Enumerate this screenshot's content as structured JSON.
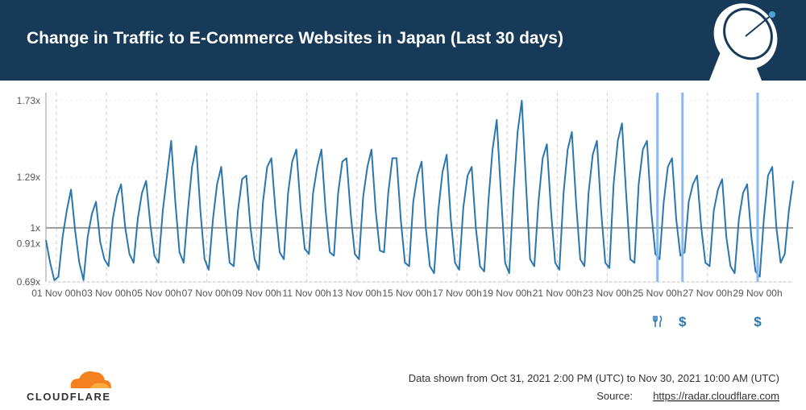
{
  "chart_data": {
    "type": "line",
    "title": "Change in Traffic to E-Commerce Websites in Japan (Last 30 days)",
    "color": "#2a76ad",
    "x": [
      "2021-10-31T14:00",
      "2021-10-31T18:00",
      "2021-10-31T22:00",
      "2021-11-01T02:00",
      "2021-11-01T06:00",
      "2021-11-01T10:00",
      "2021-11-01T14:00",
      "2021-11-01T18:00",
      "2021-11-01T22:00",
      "2021-11-02T02:00",
      "2021-11-02T06:00",
      "2021-11-02T10:00",
      "2021-11-02T14:00",
      "2021-11-02T18:00",
      "2021-11-02T22:00",
      "2021-11-03T02:00",
      "2021-11-03T06:00",
      "2021-11-03T10:00",
      "2021-11-03T14:00",
      "2021-11-03T18:00",
      "2021-11-03T22:00",
      "2021-11-04T02:00",
      "2021-11-04T06:00",
      "2021-11-04T10:00",
      "2021-11-04T14:00",
      "2021-11-04T18:00",
      "2021-11-04T22:00",
      "2021-11-05T02:00",
      "2021-11-05T06:00",
      "2021-11-05T10:00",
      "2021-11-05T14:00",
      "2021-11-05T18:00",
      "2021-11-05T22:00",
      "2021-11-06T02:00",
      "2021-11-06T06:00",
      "2021-11-06T10:00",
      "2021-11-06T14:00",
      "2021-11-06T18:00",
      "2021-11-06T22:00",
      "2021-11-07T02:00",
      "2021-11-07T06:00",
      "2021-11-07T10:00",
      "2021-11-07T14:00",
      "2021-11-07T18:00",
      "2021-11-07T22:00",
      "2021-11-08T02:00",
      "2021-11-08T06:00",
      "2021-11-08T10:00",
      "2021-11-08T14:00",
      "2021-11-08T18:00",
      "2021-11-08T22:00",
      "2021-11-09T02:00",
      "2021-11-09T06:00",
      "2021-11-09T10:00",
      "2021-11-09T14:00",
      "2021-11-09T18:00",
      "2021-11-09T22:00",
      "2021-11-10T02:00",
      "2021-11-10T06:00",
      "2021-11-10T10:00",
      "2021-11-10T14:00",
      "2021-11-10T18:00",
      "2021-11-10T22:00",
      "2021-11-11T02:00",
      "2021-11-11T06:00",
      "2021-11-11T10:00",
      "2021-11-11T14:00",
      "2021-11-11T18:00",
      "2021-11-11T22:00",
      "2021-11-12T02:00",
      "2021-11-12T06:00",
      "2021-11-12T10:00",
      "2021-11-12T14:00",
      "2021-11-12T18:00",
      "2021-11-12T22:00",
      "2021-11-13T02:00",
      "2021-11-13T06:00",
      "2021-11-13T10:00",
      "2021-11-13T14:00",
      "2021-11-13T18:00",
      "2021-11-13T22:00",
      "2021-11-14T02:00",
      "2021-11-14T06:00",
      "2021-11-14T10:00",
      "2021-11-14T14:00",
      "2021-11-14T18:00",
      "2021-11-14T22:00",
      "2021-11-15T02:00",
      "2021-11-15T06:00",
      "2021-11-15T10:00",
      "2021-11-15T14:00",
      "2021-11-15T18:00",
      "2021-11-15T22:00",
      "2021-11-16T02:00",
      "2021-11-16T06:00",
      "2021-11-16T10:00",
      "2021-11-16T14:00",
      "2021-11-16T18:00",
      "2021-11-16T22:00",
      "2021-11-17T02:00",
      "2021-11-17T06:00",
      "2021-11-17T10:00",
      "2021-11-17T14:00",
      "2021-11-17T18:00",
      "2021-11-17T22:00",
      "2021-11-18T02:00",
      "2021-11-18T06:00",
      "2021-11-18T10:00",
      "2021-11-18T14:00",
      "2021-11-18T18:00",
      "2021-11-18T22:00",
      "2021-11-19T02:00",
      "2021-11-19T06:00",
      "2021-11-19T10:00",
      "2021-11-19T14:00",
      "2021-11-19T18:00",
      "2021-11-19T22:00",
      "2021-11-20T02:00",
      "2021-11-20T06:00",
      "2021-11-20T10:00",
      "2021-11-20T14:00",
      "2021-11-20T18:00",
      "2021-11-20T22:00",
      "2021-11-21T02:00",
      "2021-11-21T06:00",
      "2021-11-21T10:00",
      "2021-11-21T14:00",
      "2021-11-21T18:00",
      "2021-11-21T22:00",
      "2021-11-22T02:00",
      "2021-11-22T06:00",
      "2021-11-22T10:00",
      "2021-11-22T14:00",
      "2021-11-22T18:00",
      "2021-11-22T22:00",
      "2021-11-23T02:00",
      "2021-11-23T06:00",
      "2021-11-23T10:00",
      "2021-11-23T14:00",
      "2021-11-23T18:00",
      "2021-11-23T22:00",
      "2021-11-24T02:00",
      "2021-11-24T06:00",
      "2021-11-24T10:00",
      "2021-11-24T14:00",
      "2021-11-24T18:00",
      "2021-11-24T22:00",
      "2021-11-25T02:00",
      "2021-11-25T06:00",
      "2021-11-25T10:00",
      "2021-11-25T14:00",
      "2021-11-25T18:00",
      "2021-11-25T22:00",
      "2021-11-26T02:00",
      "2021-11-26T06:00",
      "2021-11-26T10:00",
      "2021-11-26T14:00",
      "2021-11-26T18:00",
      "2021-11-26T22:00",
      "2021-11-27T02:00",
      "2021-11-27T06:00",
      "2021-11-27T10:00",
      "2021-11-27T14:00",
      "2021-11-27T18:00",
      "2021-11-27T22:00",
      "2021-11-28T02:00",
      "2021-11-28T06:00",
      "2021-11-28T10:00",
      "2021-11-28T14:00",
      "2021-11-28T18:00",
      "2021-11-28T22:00",
      "2021-11-29T02:00",
      "2021-11-29T06:00",
      "2021-11-29T10:00",
      "2021-11-29T14:00",
      "2021-11-29T18:00",
      "2021-11-29T22:00",
      "2021-11-30T02:00",
      "2021-11-30T06:00",
      "2021-11-30T10:00"
    ],
    "values": [
      0.93,
      0.8,
      0.7,
      0.72,
      0.95,
      1.1,
      1.22,
      0.98,
      0.8,
      0.7,
      0.95,
      1.08,
      1.15,
      0.92,
      0.82,
      0.78,
      1.05,
      1.18,
      1.25,
      1.0,
      0.85,
      0.8,
      1.05,
      1.2,
      1.27,
      1.02,
      0.84,
      0.8,
      1.1,
      1.3,
      1.5,
      1.15,
      0.86,
      0.8,
      1.1,
      1.35,
      1.47,
      1.1,
      0.82,
      0.76,
      1.05,
      1.25,
      1.35,
      1.05,
      0.8,
      0.78,
      1.1,
      1.28,
      1.3,
      1.0,
      0.82,
      0.76,
      1.15,
      1.35,
      1.4,
      1.1,
      0.86,
      0.82,
      1.2,
      1.38,
      1.45,
      1.12,
      0.88,
      0.85,
      1.2,
      1.35,
      1.45,
      1.1,
      0.86,
      0.84,
      1.2,
      1.38,
      1.4,
      1.08,
      0.85,
      0.82,
      1.18,
      1.35,
      1.45,
      1.1,
      0.87,
      0.86,
      1.2,
      1.4,
      1.4,
      1.05,
      0.8,
      0.78,
      1.15,
      1.3,
      1.38,
      1.0,
      0.78,
      0.74,
      1.1,
      1.32,
      1.42,
      1.05,
      0.8,
      0.76,
      1.12,
      1.3,
      1.35,
      1.0,
      0.78,
      0.75,
      1.15,
      1.45,
      1.62,
      1.2,
      0.8,
      0.74,
      1.2,
      1.55,
      1.73,
      1.25,
      0.82,
      0.78,
      1.15,
      1.4,
      1.48,
      1.1,
      0.8,
      0.76,
      1.2,
      1.45,
      1.55,
      1.15,
      0.82,
      0.78,
      1.2,
      1.42,
      1.5,
      1.1,
      0.8,
      0.77,
      1.25,
      1.5,
      1.6,
      1.2,
      0.82,
      0.8,
      1.25,
      1.45,
      1.5,
      1.1,
      0.85,
      0.82,
      1.15,
      1.35,
      1.4,
      1.05,
      0.84,
      0.86,
      1.15,
      1.25,
      1.3,
      1.0,
      0.8,
      0.78,
      1.1,
      1.22,
      1.28,
      0.95,
      0.78,
      0.74,
      1.05,
      1.2,
      1.25,
      0.95,
      0.75,
      0.72,
      1.05,
      1.3,
      1.35,
      1.0,
      0.8,
      0.85,
      1.1,
      1.27
    ],
    "xlim": [
      "2021-10-31T14:00",
      "2021-11-30T10:00"
    ],
    "xticks": [
      {
        "value": "2021-11-01T00:00",
        "label": "01 Nov 00h"
      },
      {
        "value": "2021-11-03T00:00",
        "label": "03 Nov 00h"
      },
      {
        "value": "2021-11-05T00:00",
        "label": "05 Nov 00h"
      },
      {
        "value": "2021-11-07T00:00",
        "label": "07 Nov 00h"
      },
      {
        "value": "2021-11-09T00:00",
        "label": "09 Nov 00h"
      },
      {
        "value": "2021-11-11T00:00",
        "label": "11 Nov 00h"
      },
      {
        "value": "2021-11-13T00:00",
        "label": "13 Nov 00h"
      },
      {
        "value": "2021-11-15T00:00",
        "label": "15 Nov 00h"
      },
      {
        "value": "2021-11-17T00:00",
        "label": "17 Nov 00h"
      },
      {
        "value": "2021-11-19T00:00",
        "label": "19 Nov 00h"
      },
      {
        "value": "2021-11-21T00:00",
        "label": "21 Nov 00h"
      },
      {
        "value": "2021-11-23T00:00",
        "label": "23 Nov 00h"
      },
      {
        "value": "2021-11-25T00:00",
        "label": "25 Nov 00h"
      },
      {
        "value": "2021-11-27T00:00",
        "label": "27 Nov 00h"
      },
      {
        "value": "2021-11-29T00:00",
        "label": "29 Nov 00h"
      }
    ],
    "ylim": [
      0.69,
      1.73
    ],
    "yticks": [
      {
        "value": 0.69,
        "label": "0.69x"
      },
      {
        "value": 0.91,
        "label": "0.91x"
      },
      {
        "value": 1,
        "label": "1x"
      },
      {
        "value": 1.29,
        "label": "1.29x"
      },
      {
        "value": 1.73,
        "label": "1.73x"
      }
    ],
    "reference_line": 1,
    "grid": true,
    "events": [
      {
        "x": "2021-11-25T00:00"
      },
      {
        "x": "2021-11-26T00:00",
        "label": "$"
      },
      {
        "x": "2021-11-29T00:00",
        "label": "$"
      }
    ]
  },
  "footer": {
    "note": "Data shown from Oct 31, 2021 2:00 PM (UTC) to Nov 30, 2021 10:00 AM (UTC)",
    "source_label": "Source:",
    "source_link": "https://radar.cloudflare.com"
  },
  "logo": "CLOUDFLARE"
}
